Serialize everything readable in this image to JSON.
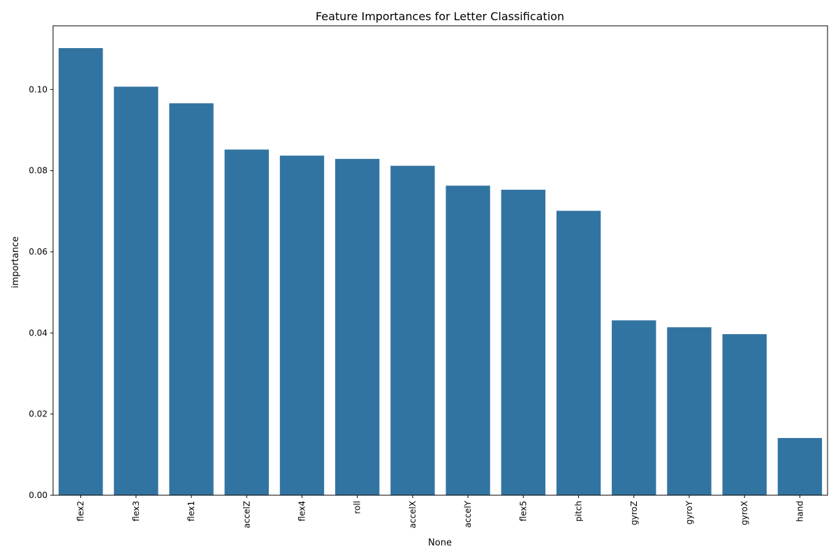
{
  "chart_data": {
    "type": "bar",
    "title": "Feature Importances for Letter Classification",
    "xlabel": "None",
    "ylabel": "importance",
    "categories": [
      "flex2",
      "flex3",
      "flex1",
      "accelZ",
      "flex4",
      "roll",
      "accelX",
      "accelY",
      "flex5",
      "pitch",
      "gyroZ",
      "gyroY",
      "gyroX",
      "hand"
    ],
    "values": [
      0.1102,
      0.1007,
      0.0966,
      0.0852,
      0.0837,
      0.0829,
      0.0812,
      0.0763,
      0.0753,
      0.0701,
      0.0431,
      0.0414,
      0.0397,
      0.0141
    ],
    "yticks": [
      "0.00",
      "0.02",
      "0.04",
      "0.06",
      "0.08",
      "0.10"
    ],
    "ylim": [
      0,
      0.1157
    ],
    "bar_color": "#3274a1",
    "grid": false,
    "legend": "none"
  }
}
